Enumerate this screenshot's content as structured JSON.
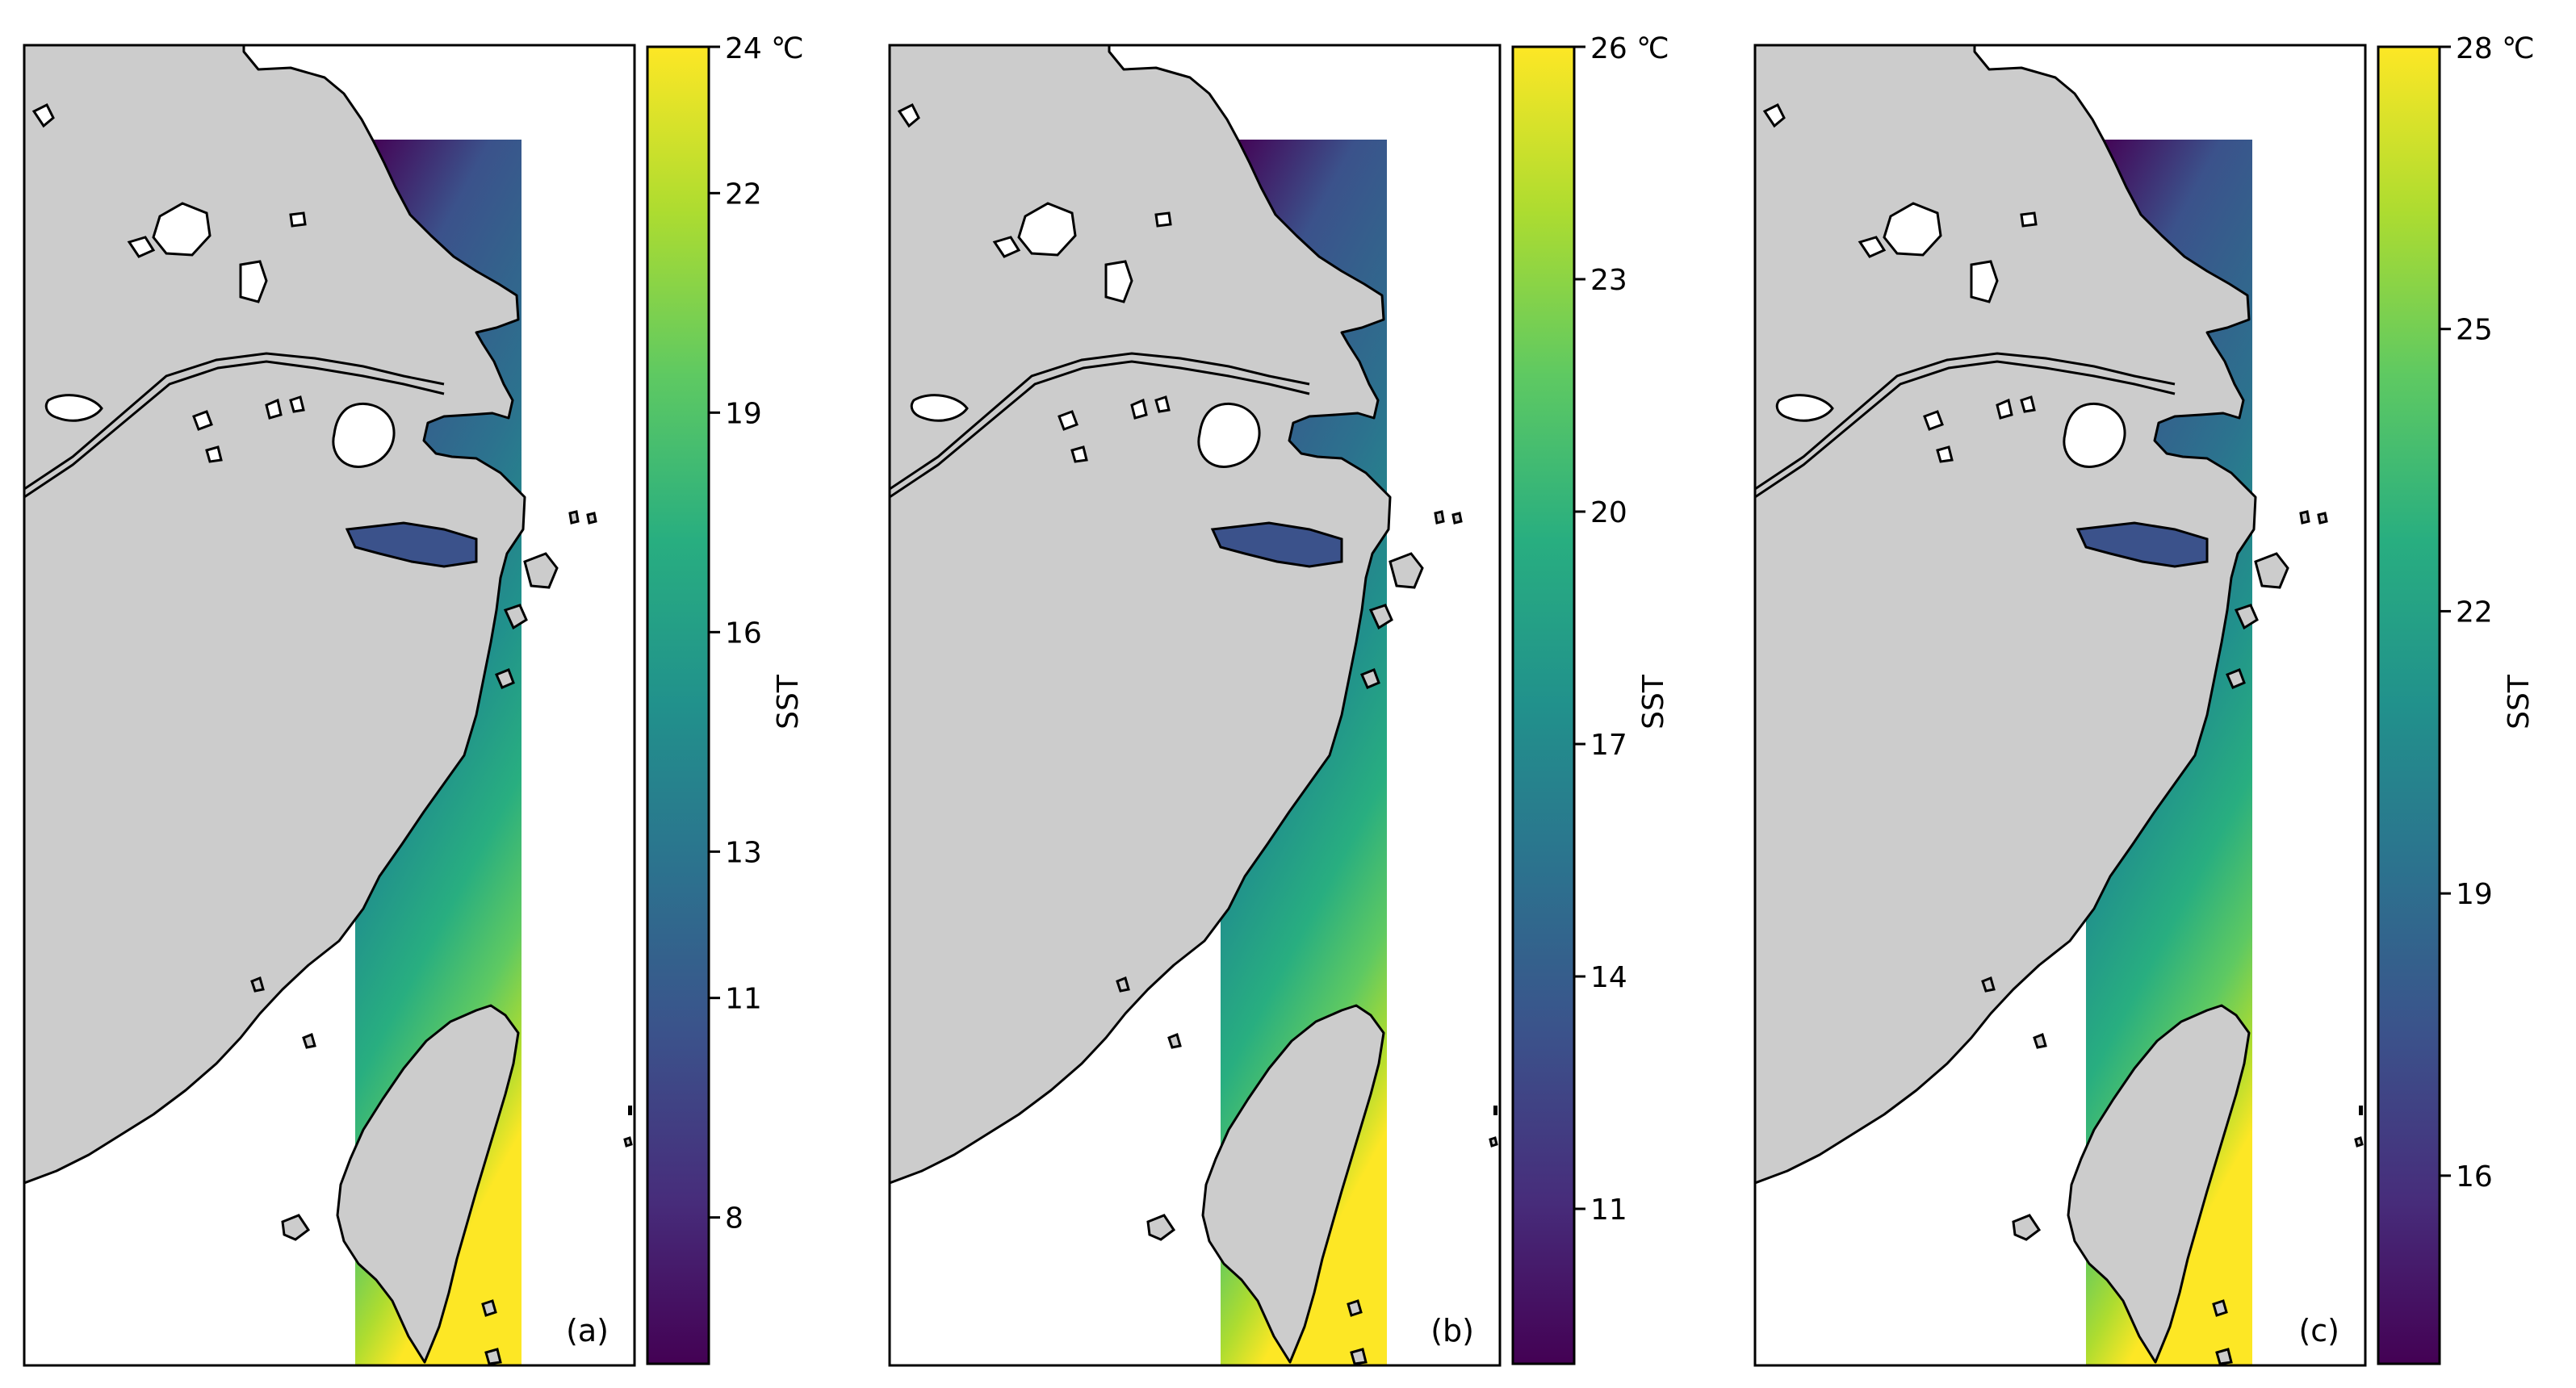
{
  "figure": {
    "variable_label": "SST",
    "panels": [
      {
        "label": "(a)",
        "colorbar": {
          "label": "SST",
          "top_label": "24 ℃",
          "ticks": [
            {
              "text": "22",
              "value": 22
            },
            {
              "text": "19",
              "value": 19
            },
            {
              "text": "16",
              "value": 16
            },
            {
              "text": "13",
              "value": 13
            },
            {
              "text": "11",
              "value": 11
            },
            {
              "text": "8",
              "value": 8
            }
          ],
          "vmin": 6.0,
          "vmax": 24.0
        }
      },
      {
        "label": "(b)",
        "colorbar": {
          "label": "SST",
          "top_label": "26 ℃",
          "ticks": [
            {
              "text": "23",
              "value": 23
            },
            {
              "text": "20",
              "value": 20
            },
            {
              "text": "17",
              "value": 17
            },
            {
              "text": "14",
              "value": 14
            },
            {
              "text": "11",
              "value": 11
            }
          ],
          "vmin": 9.0,
          "vmax": 26.0
        }
      },
      {
        "label": "(c)",
        "colorbar": {
          "label": "SST",
          "top_label": "28 ℃",
          "ticks": [
            {
              "text": "25",
              "value": 25
            },
            {
              "text": "22",
              "value": 22
            },
            {
              "text": "19",
              "value": 19
            },
            {
              "text": "16",
              "value": 16
            }
          ],
          "vmin": 14.0,
          "vmax": 28.0
        }
      }
    ],
    "colormap": [
      "#440154",
      "#472d7b",
      "#3b528b",
      "#2c728e",
      "#21918c",
      "#28ae80",
      "#5ec962",
      "#addc30",
      "#fde725"
    ],
    "land_color": "#cccccc",
    "ocean_color": "#ffffff"
  }
}
